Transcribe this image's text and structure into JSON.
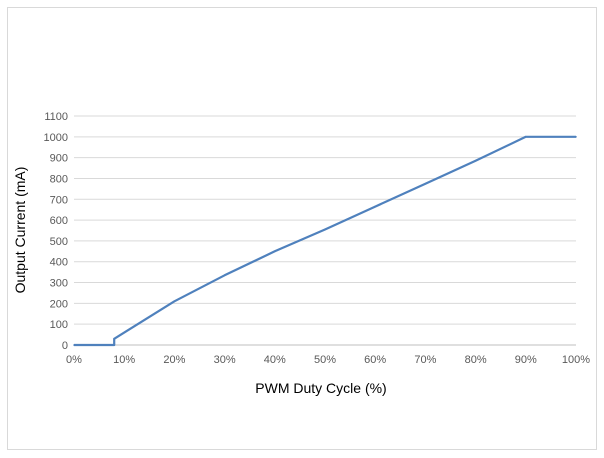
{
  "chart_data": {
    "type": "line",
    "title": "",
    "xlabel": "PWM Duty Cycle (%)",
    "ylabel": "Output Current (mA)",
    "x_tick_labels": [
      "0%",
      "10%",
      "20%",
      "30%",
      "40%",
      "50%",
      "60%",
      "70%",
      "80%",
      "90%",
      "100%"
    ],
    "y_tick_labels": [
      "0",
      "100",
      "200",
      "300",
      "400",
      "500",
      "600",
      "700",
      "800",
      "900",
      "1000",
      "1100"
    ],
    "xlim": [
      0,
      100
    ],
    "ylim": [
      0,
      1100
    ],
    "grid": true,
    "legend": "none",
    "series": [
      {
        "color": "#4f81bd",
        "x": [
          0,
          8,
          8,
          20,
          30,
          40,
          50,
          60,
          70,
          80,
          90,
          100
        ],
        "y": [
          0,
          0,
          30,
          210,
          335,
          450,
          555,
          665,
          775,
          885,
          1000,
          1000
        ]
      }
    ],
    "grid_color": "#d9d9d9"
  }
}
